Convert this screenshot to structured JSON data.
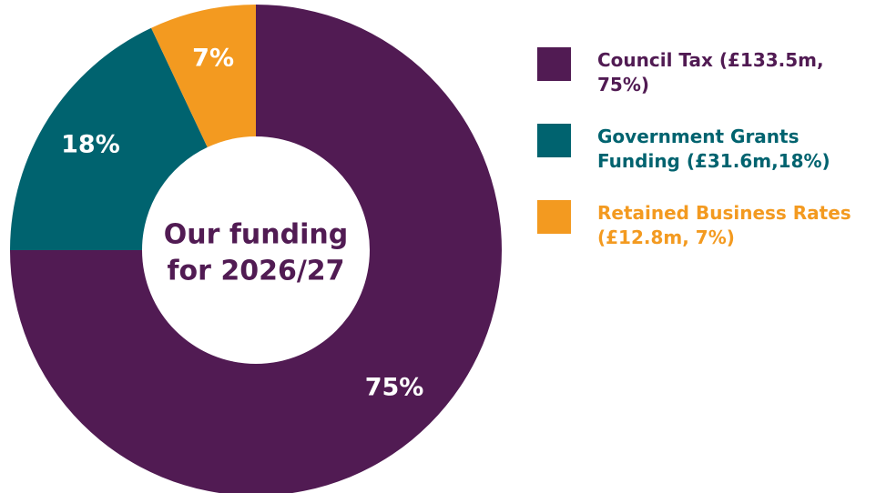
{
  "chart_data": {
    "type": "pie",
    "variant": "donut",
    "center_label": [
      "Our funding",
      "for 2026/27"
    ],
    "slices": [
      {
        "name": "Council Tax",
        "value": 75,
        "amount": "£133.5m",
        "label": "75%",
        "color": "#511b53"
      },
      {
        "name": "Government Grants Funding",
        "value": 18,
        "amount": "£31.6m",
        "label": "18%",
        "color": "#00636f"
      },
      {
        "name": "Retained Business Rates",
        "value": 7,
        "amount": "£12.8m",
        "label": "7%",
        "color": "#f39a20"
      }
    ],
    "legend_position": "right"
  },
  "legend": {
    "items": [
      {
        "text": "Council Tax (£133.5m, 75%)",
        "color": "#511b53"
      },
      {
        "text": "Government Grants Funding (£31.6m,18%)",
        "color": "#00636f"
      },
      {
        "text": "Retained Business Rates (£12.8m, 7%)",
        "color": "#f39a20"
      }
    ]
  }
}
